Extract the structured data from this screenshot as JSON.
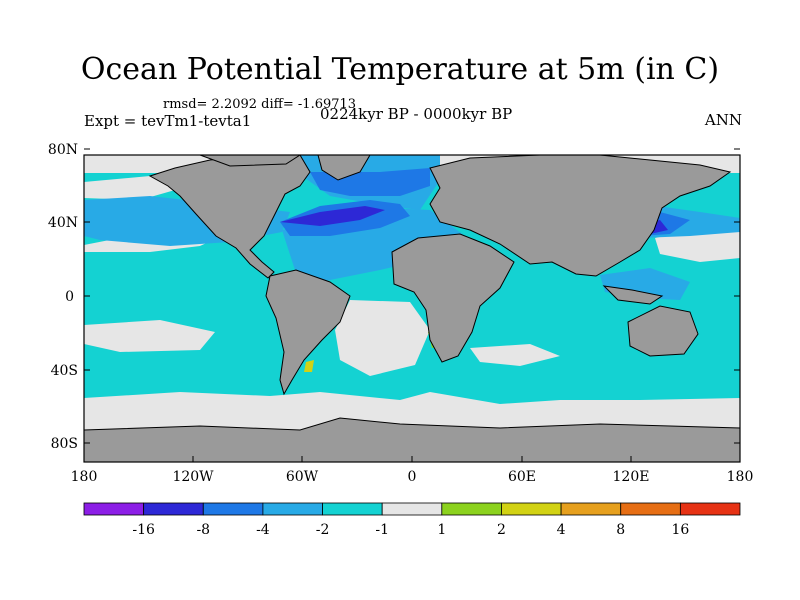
{
  "title": "Ocean Potential Temperature at 5m (in C)",
  "stats": "rmsd= 2.2092 diff= -1.69713",
  "experiment": "Expt = tevTm1-tevta1",
  "period": "0224kyr BP - 0000kyr BP",
  "season": "ANN",
  "lat_labels": [
    "80N",
    "40N",
    "0",
    "40S",
    "80S"
  ],
  "lon_labels": [
    "180",
    "120W",
    "60W",
    "0",
    "60E",
    "120E",
    "180"
  ],
  "colorbar": {
    "colors": [
      "#8c1ee6",
      "#2d28d6",
      "#1e78e6",
      "#28aae6",
      "#14d2d2",
      "#e6e6e6",
      "#8cd21e",
      "#d2d214",
      "#e6a01e",
      "#e66e14",
      "#e63214"
    ],
    "labels": [
      "-16",
      "-8",
      "-4",
      "-2",
      "-1",
      "1",
      "2",
      "4",
      "8",
      "16"
    ]
  },
  "colors": {
    "land": "#9a9a9a",
    "neutral": "#e6e6e6",
    "cyan": "#14d2d2",
    "light_blue": "#28aae6",
    "blue": "#1e78e6",
    "dark_blue": "#2d28d6",
    "green": "#8cd21e"
  }
}
